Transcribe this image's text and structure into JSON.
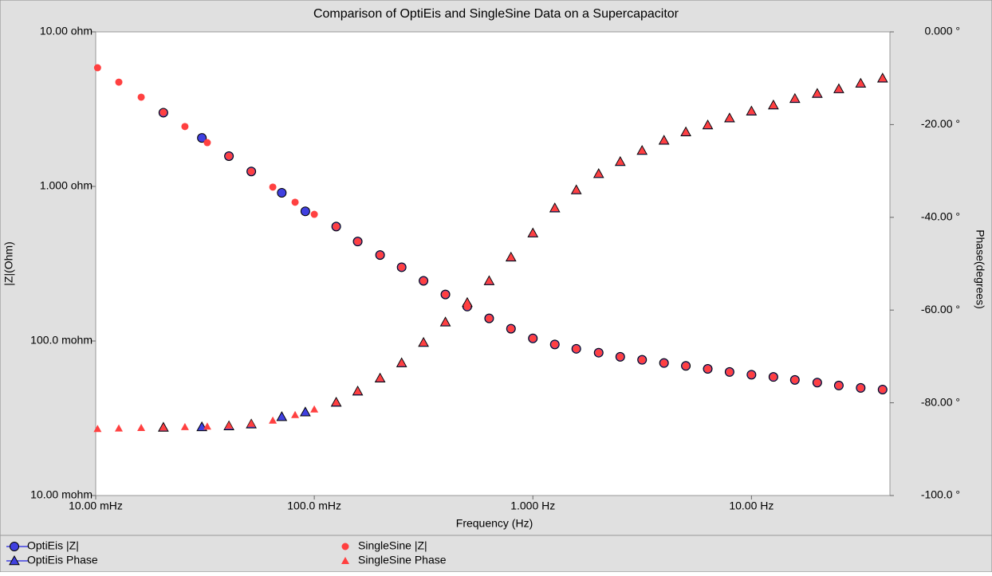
{
  "chart_data": {
    "type": "scatter",
    "title": "Comparison of OptiEis and SingleSine Data on a Supercapacitor",
    "x_label": "Frequency (Hz)",
    "y_label": "|Z|(Ohm)",
    "y2_label": "Phase(degrees)",
    "x_scale": "log",
    "y_scale": "log",
    "xlim": [
      0.01,
      43
    ],
    "ylim": [
      0.01,
      10
    ],
    "y2lim": [
      -100,
      0
    ],
    "xticks": [
      {
        "value": 0.01,
        "label": "10.00 mHz"
      },
      {
        "value": 0.1,
        "label": "100.0 mHz"
      },
      {
        "value": 1,
        "label": "1.000 Hz"
      },
      {
        "value": 10,
        "label": "10.00 Hz"
      }
    ],
    "yticks": [
      {
        "value": 10,
        "label": "10.00 ohm"
      },
      {
        "value": 1,
        "label": "1.000 ohm"
      },
      {
        "value": 0.1,
        "label": "100.0 mohm"
      },
      {
        "value": 0.01,
        "label": "10.00 mohm"
      }
    ],
    "y2ticks": [
      {
        "value": 0,
        "label": "0.000 °"
      },
      {
        "value": -20,
        "label": "-20.00 °"
      },
      {
        "value": -40,
        "label": "-40.00 °"
      },
      {
        "value": -60,
        "label": "-60.00 °"
      },
      {
        "value": -80,
        "label": "-80.00 °"
      },
      {
        "value": -100,
        "label": "-100.0 °"
      }
    ],
    "series": [
      {
        "name": "OptiEis |Z|",
        "color": "#4040e0",
        "marker": "circle",
        "outline": true,
        "axis": "y",
        "x": [
          0.0204,
          0.0306,
          0.0407,
          0.0515,
          0.071,
          0.091,
          0.126,
          0.158,
          0.2,
          0.251,
          0.316,
          0.398,
          0.501,
          0.631,
          0.794,
          1,
          1.26,
          1.58,
          2,
          2.51,
          3.16,
          3.98,
          5.01,
          6.31,
          7.94,
          10,
          12.6,
          15.8,
          20,
          25.1,
          31.6,
          39.8
        ],
        "values": [
          3.0,
          2.06,
          1.57,
          1.25,
          0.91,
          0.69,
          0.55,
          0.44,
          0.36,
          0.3,
          0.245,
          0.2,
          0.167,
          0.14,
          0.12,
          0.104,
          0.095,
          0.089,
          0.084,
          0.079,
          0.0755,
          0.072,
          0.069,
          0.066,
          0.063,
          0.0605,
          0.0585,
          0.056,
          0.0538,
          0.0515,
          0.0497,
          0.0485
        ]
      },
      {
        "name": "OptiEis Phase",
        "color": "#4040e0",
        "marker": "triangle",
        "outline": true,
        "axis": "y2",
        "x": [
          0.0204,
          0.0306,
          0.0407,
          0.0515,
          0.071,
          0.091,
          0.126,
          0.158,
          0.2,
          0.251,
          0.316,
          0.398,
          0.501,
          0.631,
          0.794,
          1,
          1.26,
          1.58,
          2,
          2.51,
          3.16,
          3.98,
          5.01,
          6.31,
          7.94,
          10,
          12.6,
          15.8,
          20,
          25.1,
          31.6,
          39.8
        ],
        "values": [
          -85.3,
          -85.2,
          -85.0,
          -84.6,
          -83.0,
          -82.0,
          -79.9,
          -77.5,
          -74.7,
          -71.4,
          -67.0,
          -62.6,
          -58.4,
          -53.7,
          -48.6,
          -43.4,
          -38.0,
          -34.1,
          -30.6,
          -28.0,
          -25.6,
          -23.4,
          -21.6,
          -20.1,
          -18.6,
          -17.1,
          -15.8,
          -14.4,
          -13.3,
          -12.3,
          -11.1,
          -10.0
        ]
      },
      {
        "name": "SingleSine |Z|",
        "color": "#ff4040",
        "marker": "circle",
        "outline": false,
        "axis": "y",
        "x": [
          0.0102,
          0.01276,
          0.01615,
          0.0204,
          0.0256,
          0.0324,
          0.0407,
          0.0515,
          0.0646,
          0.0817,
          0.1,
          0.126,
          0.158,
          0.2,
          0.251,
          0.316,
          0.398,
          0.501,
          0.631,
          0.794,
          1,
          1.26,
          1.58,
          2,
          2.51,
          3.16,
          3.98,
          5.01,
          6.31,
          7.94,
          10,
          12.6,
          15.8,
          20,
          25.1,
          31.6,
          39.8
        ],
        "values": [
          5.86,
          4.73,
          3.78,
          3.01,
          2.44,
          1.92,
          1.57,
          1.25,
          0.99,
          0.79,
          0.66,
          0.55,
          0.44,
          0.36,
          0.3,
          0.245,
          0.2,
          0.167,
          0.14,
          0.12,
          0.104,
          0.095,
          0.089,
          0.084,
          0.079,
          0.0755,
          0.072,
          0.069,
          0.066,
          0.063,
          0.0605,
          0.0585,
          0.056,
          0.0538,
          0.0515,
          0.0497,
          0.0485
        ]
      },
      {
        "name": "SingleSine Phase",
        "color": "#ff4040",
        "marker": "triangle",
        "outline": false,
        "axis": "y2",
        "x": [
          0.0102,
          0.01276,
          0.01615,
          0.0204,
          0.0256,
          0.0324,
          0.0407,
          0.0515,
          0.0646,
          0.0817,
          0.1,
          0.126,
          0.158,
          0.2,
          0.251,
          0.316,
          0.398,
          0.501,
          0.631,
          0.794,
          1,
          1.26,
          1.58,
          2,
          2.51,
          3.16,
          3.98,
          5.01,
          6.31,
          7.94,
          10,
          12.6,
          15.8,
          20,
          25.1,
          31.6,
          39.8
        ],
        "values": [
          -85.6,
          -85.5,
          -85.4,
          -85.3,
          -85.2,
          -85.1,
          -84.9,
          -84.5,
          -83.8,
          -82.6,
          -81.4,
          -79.9,
          -77.5,
          -74.7,
          -71.4,
          -67.0,
          -62.6,
          -58.4,
          -53.7,
          -48.6,
          -43.4,
          -38.0,
          -34.1,
          -30.6,
          -28.0,
          -25.6,
          -23.4,
          -21.6,
          -20.1,
          -18.6,
          -17.1,
          -15.8,
          -14.4,
          -13.3,
          -12.3,
          -11.1,
          -10.0
        ]
      }
    ]
  }
}
